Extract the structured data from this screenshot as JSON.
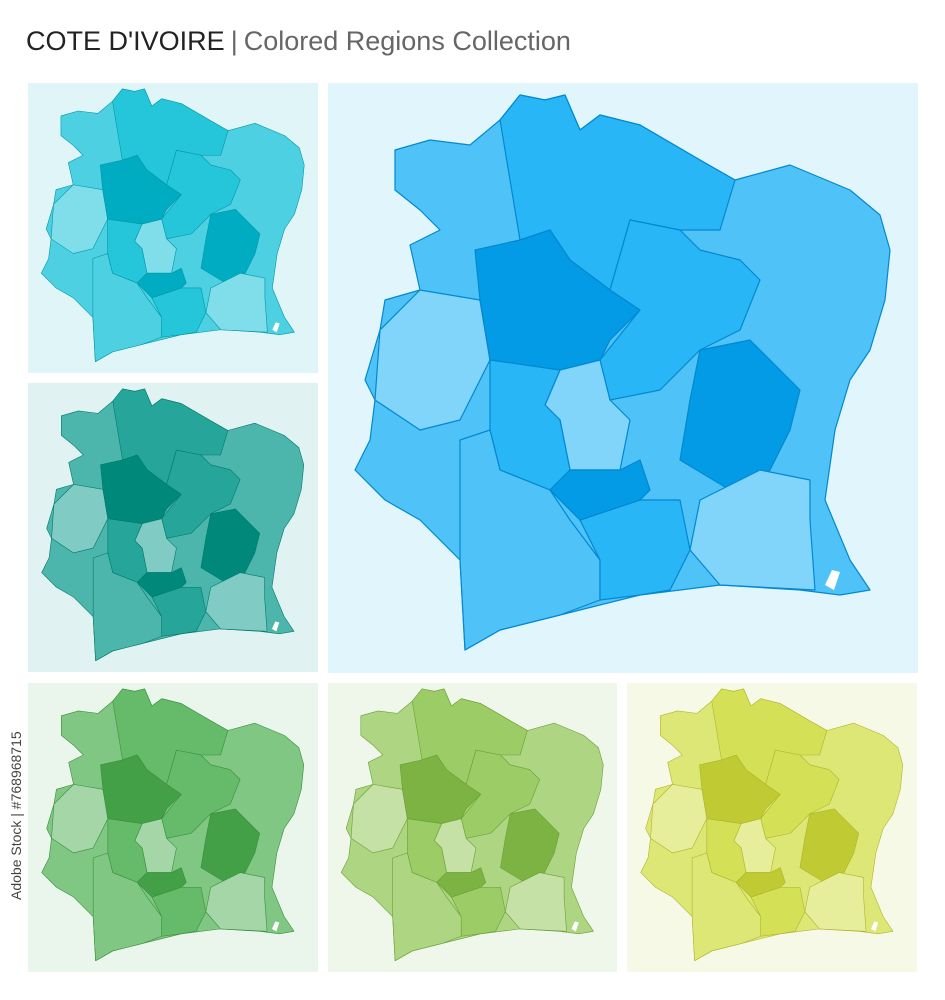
{
  "header": {
    "title": "COTE D'IVOIRE",
    "separator": "|",
    "subtitle": "Colored Regions Collection"
  },
  "watermark": "Adobe Stock | #768968715"
}
